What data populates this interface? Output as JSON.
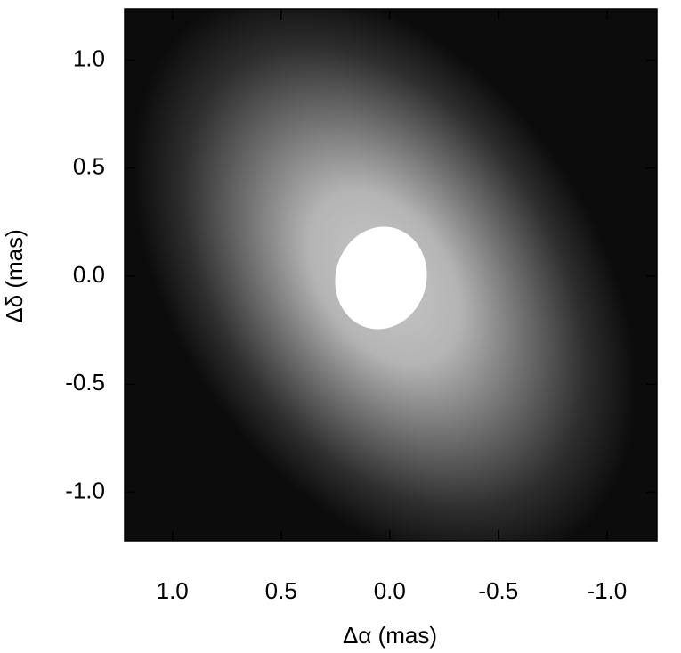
{
  "chart_data": {
    "type": "image",
    "x_label": "Δα (mas)",
    "y_label": "Δδ (mas)",
    "xlim": [
      1.22,
      -1.23
    ],
    "ylim": [
      -1.225,
      1.237
    ],
    "xticks": [
      {
        "value": 1.0,
        "label": "1.0"
      },
      {
        "value": 0.5,
        "label": "0.5"
      },
      {
        "value": 0.0,
        "label": "0.0"
      },
      {
        "value": -0.5,
        "label": "-0.5"
      },
      {
        "value": -1.0,
        "label": "-1.0"
      }
    ],
    "yticks": [
      {
        "value": -1.0,
        "label": "-1.0"
      },
      {
        "value": -0.5,
        "label": "-0.5"
      },
      {
        "value": 0.0,
        "label": "0.0"
      },
      {
        "value": 0.5,
        "label": "0.5"
      },
      {
        "value": 1.0,
        "label": "1.0"
      }
    ]
  }
}
